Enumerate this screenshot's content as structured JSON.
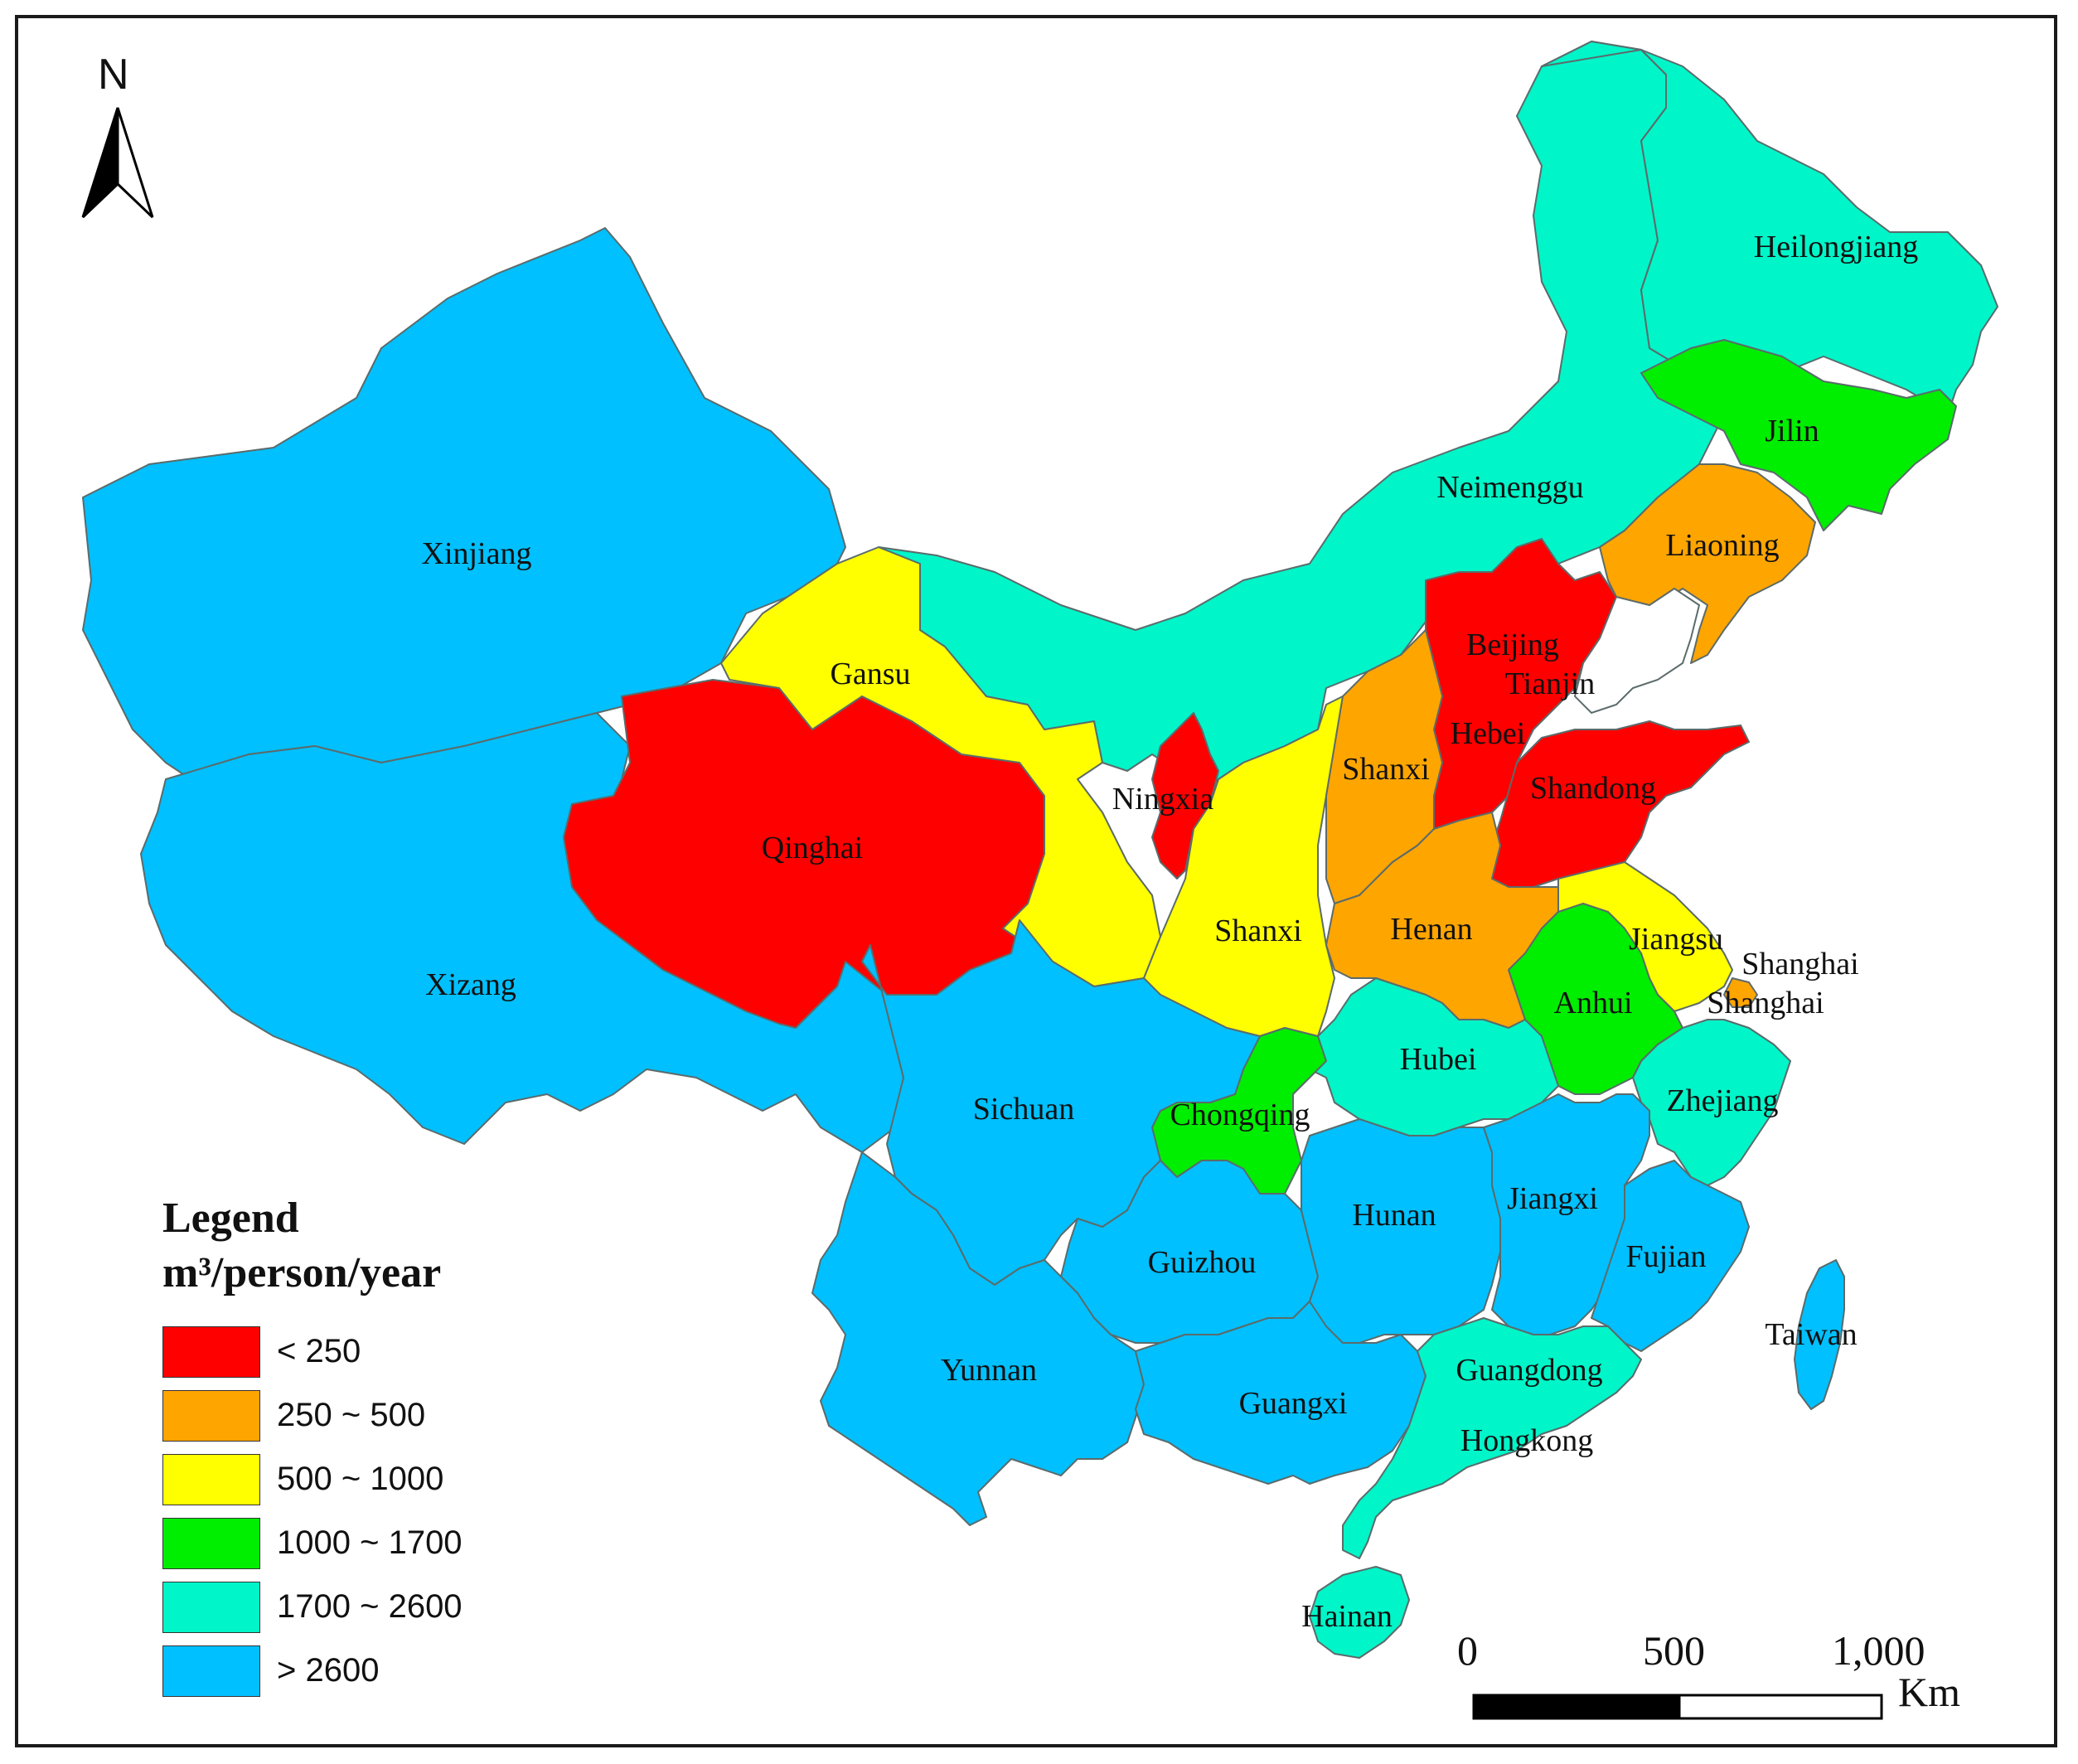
{
  "legend": {
    "title": "Legend",
    "unit": "m³/person/year",
    "classes": [
      {
        "label": "< 250",
        "color": "#ff0000"
      },
      {
        "label": "250 ~ 500",
        "color": "#ffa500"
      },
      {
        "label": "500 ~ 1000",
        "color": "#ffff00"
      },
      {
        "label": "1000 ~ 1700",
        "color": "#00ee00"
      },
      {
        "label": "1700 ~ 2600",
        "color": "#00f5c8"
      },
      {
        "label": "> 2600",
        "color": "#00c0ff"
      }
    ]
  },
  "north_arrow": {
    "letter": "N",
    "icon": "north-arrow-icon"
  },
  "scale_bar": {
    "ticks": [
      "0",
      "500",
      "1,000"
    ],
    "unit": "Km"
  },
  "provinces": [
    {
      "name": "Xinjiang",
      "class": "> 2600"
    },
    {
      "name": "Xizang",
      "class": "> 2600"
    },
    {
      "name": "Qinghai",
      "class": "< 250"
    },
    {
      "name": "Gansu",
      "class": "500 ~ 1000"
    },
    {
      "name": "Neimenggu",
      "class": "1700 ~ 2600"
    },
    {
      "name": "Heilongjiang",
      "class": "1700 ~ 2600"
    },
    {
      "name": "Jilin",
      "class": "1000 ~ 1700"
    },
    {
      "name": "Liaoning",
      "class": "250 ~ 500"
    },
    {
      "name": "Beijing",
      "class": "< 250"
    },
    {
      "name": "Tianjin",
      "class": "< 250"
    },
    {
      "name": "Hebei",
      "class": "< 250"
    },
    {
      "name": "Shandong",
      "class": "< 250"
    },
    {
      "name": "Ningxia",
      "class": "< 250"
    },
    {
      "name": "Shanxi",
      "class": "250 ~ 500",
      "note_label": "Shanxi"
    },
    {
      "name": "Shanxi",
      "class": "500 ~ 1000",
      "note_label": "Shanxi"
    },
    {
      "name": "Henan",
      "class": "250 ~ 500"
    },
    {
      "name": "Jiangsu",
      "class": "500 ~ 1000"
    },
    {
      "name": "Anhui",
      "class": "1000 ~ 1700"
    },
    {
      "name": "Shanghai",
      "class": "250 ~ 500"
    },
    {
      "name": "Hubei",
      "class": "1700 ~ 2600"
    },
    {
      "name": "Zhejiang",
      "class": "1700 ~ 2600"
    },
    {
      "name": "Chongqing",
      "class": "1000 ~ 1700"
    },
    {
      "name": "Sichuan",
      "class": "> 2600"
    },
    {
      "name": "Guizhou",
      "class": "> 2600"
    },
    {
      "name": "Hunan",
      "class": "> 2600"
    },
    {
      "name": "Jiangxi",
      "class": "> 2600"
    },
    {
      "name": "Fujian",
      "class": "> 2600"
    },
    {
      "name": "Taiwan",
      "class": "> 2600"
    },
    {
      "name": "Yunnan",
      "class": "> 2600"
    },
    {
      "name": "Guangxi",
      "class": "> 2600"
    },
    {
      "name": "Guangdong",
      "class": "1700 ~ 2600"
    },
    {
      "name": "Hongkong",
      "class": "1700 ~ 2600"
    },
    {
      "name": "Hainan",
      "class": "1700 ~ 2600"
    }
  ],
  "map_labels": {
    "xinjiang": "Xinjiang",
    "xizang": "Xizang",
    "qinghai": "Qinghai",
    "gansu": "Gansu",
    "neimenggu": "Neimenggu",
    "heilongjiang": "Heilongjiang",
    "jilin": "Jilin",
    "liaoning": "Liaoning",
    "beijing": "Beijing",
    "tianjin": "Tianjin",
    "hebei": "Hebei",
    "shandong": "Shandong",
    "ningxia": "Ningxia",
    "shanxi_east": "Shanxi",
    "shanxi_west": "Shanxi",
    "henan": "Henan",
    "jiangsu": "Jiangsu",
    "anhui": "Anhui",
    "shanghai_1": "Shanghai",
    "shanghai_2": "Shanghai",
    "hubei": "Hubei",
    "zhejiang": "Zhejiang",
    "chongqing": "Chongqing",
    "sichuan": "Sichuan",
    "guizhou": "Guizhou",
    "hunan": "Hunan",
    "jiangxi": "Jiangxi",
    "fujian": "Fujian",
    "taiwan": "Taiwan",
    "yunnan": "Yunnan",
    "guangxi": "Guangxi",
    "guangdong": "Guangdong",
    "hongkong": "Hongkong",
    "hainan": "Hainan"
  }
}
